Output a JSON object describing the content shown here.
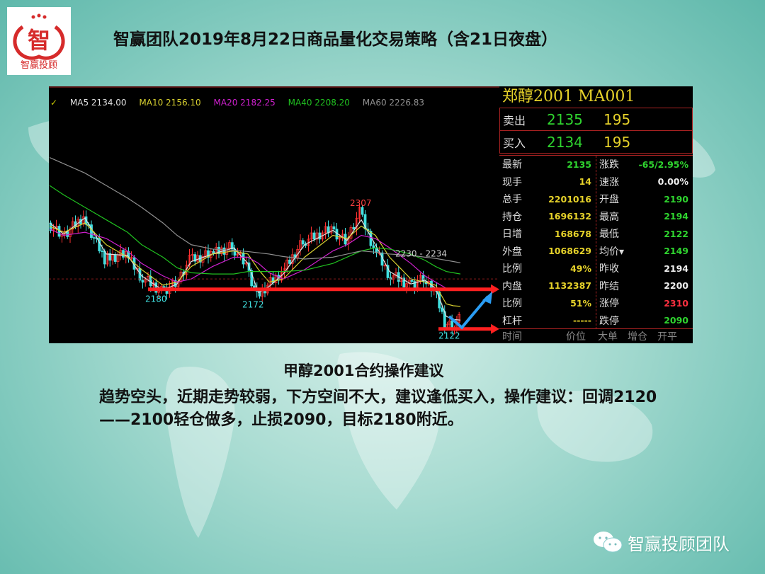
{
  "title": "智赢团队2019年8月22日商品量化交易策略（含21日夜盘）",
  "logo": {
    "text": "智赢投顾",
    "glyph": "智",
    "color": "#d62b2b"
  },
  "chart_data": {
    "type": "candlestick",
    "note_ma_legend": [
      {
        "name": "MA5",
        "value": "2134.00",
        "color": "#e0e0e0"
      },
      {
        "name": "MA10",
        "value": "2156.10",
        "color": "#d8d030"
      },
      {
        "name": "MA20",
        "value": "2182.25",
        "color": "#d020d0"
      },
      {
        "name": "MA40",
        "value": "2208.20",
        "color": "#20c020"
      },
      {
        "name": "MA60",
        "value": "2226.83",
        "color": "#909090"
      }
    ],
    "close": [
      2290,
      2268,
      2300,
      2232,
      2240,
      2206,
      2180,
      2192,
      2230,
      2240,
      2252,
      2222,
      2172,
      2190,
      2210,
      2260,
      2280,
      2260,
      2307,
      2250,
      2210,
      2190,
      2200,
      2185,
      2130,
      2122,
      2135
    ],
    "ma": {
      "MA5": [
        2290,
        2272,
        2298,
        2240,
        2238,
        2205,
        2182,
        2192,
        2228,
        2240,
        2250,
        2225,
        2178,
        2188,
        2208,
        2255,
        2278,
        2262,
        2295,
        2255,
        2212,
        2192,
        2198,
        2185,
        2140,
        2135,
        2134
      ],
      "MA10": [
        2285,
        2275,
        2290,
        2255,
        2235,
        2215,
        2190,
        2195,
        2220,
        2240,
        2245,
        2240,
        2215,
        2195,
        2200,
        2235,
        2270,
        2265,
        2285,
        2270,
        2235,
        2200,
        2195,
        2190,
        2160,
        2157,
        2156
      ],
      "MA20": [
        2280,
        2270,
        2275,
        2265,
        2245,
        2225,
        2205,
        2195,
        2200,
        2220,
        2235,
        2235,
        2225,
        2210,
        2200,
        2215,
        2245,
        2255,
        2270,
        2265,
        2250,
        2225,
        2205,
        2195,
        2185,
        2183,
        2182
      ],
      "MA40": [
        2350,
        2335,
        2315,
        2295,
        2275,
        2255,
        2235,
        2218,
        2210,
        2208,
        2208,
        2212,
        2212,
        2212,
        2212,
        2214,
        2225,
        2235,
        2245,
        2250,
        2248,
        2240,
        2230,
        2220,
        2212,
        2210,
        2208
      ],
      "MA60": [
        2395,
        2385,
        2370,
        2350,
        2330,
        2315,
        2290,
        2270,
        2255,
        2248,
        2246,
        2244,
        2242,
        2240,
        2236,
        2232,
        2235,
        2240,
        2245,
        2243,
        2240,
        2238,
        2235,
        2233,
        2230,
        2228,
        2226
      ]
    },
    "annotations": {
      "high": "2307",
      "low1": "2180",
      "low2": "2172",
      "low3": "2122",
      "range": "2230 - 2234"
    },
    "support_levels": [
      2180,
      2122
    ],
    "prev_settle_line": 2200,
    "colors": {
      "up": "#ff3030",
      "down": "#40e0e0",
      "arrow": "#ff2020",
      "forecast": "#2a9df4"
    }
  },
  "panel": {
    "header": "郑醇2001  MA001",
    "sell": {
      "label": "卖出",
      "price": "2135",
      "vol": "195"
    },
    "buy": {
      "label": "买入",
      "price": "2134",
      "vol": "195"
    },
    "left": [
      {
        "k": "最新",
        "v": "2135",
        "c": "#2fd42f"
      },
      {
        "k": "现手",
        "v": "14",
        "c": "#e6d22a"
      },
      {
        "k": "总手",
        "v": "2201016",
        "c": "#e6d22a"
      },
      {
        "k": "持仓",
        "v": "1696132",
        "c": "#e6d22a"
      },
      {
        "k": "日增",
        "v": "168678",
        "c": "#e6d22a"
      },
      {
        "k": "外盘",
        "v": "1068629",
        "c": "#e6d22a"
      },
      {
        "k": "比例",
        "v": "49%",
        "c": "#e6d22a"
      },
      {
        "k": "内盘",
        "v": "1132387",
        "c": "#e6d22a"
      },
      {
        "k": "比例",
        "v": "51%",
        "c": "#e6d22a"
      },
      {
        "k": "杠杆",
        "v": "-----",
        "c": "#e6d22a"
      }
    ],
    "right": [
      {
        "k": "涨跌",
        "v": "-65/2.95%",
        "c": "#2fd42f"
      },
      {
        "k": "速涨",
        "v": "0.00%",
        "c": "#eeeeee"
      },
      {
        "k": "开盘",
        "v": "2190",
        "c": "#2fd42f"
      },
      {
        "k": "最高",
        "v": "2194",
        "c": "#2fd42f"
      },
      {
        "k": "最低",
        "v": "2122",
        "c": "#2fd42f"
      },
      {
        "k": "均价▾",
        "v": "2149",
        "c": "#2fd42f"
      },
      {
        "k": "昨收",
        "v": "2194",
        "c": "#eeeeee"
      },
      {
        "k": "昨结",
        "v": "2200",
        "c": "#eeeeee"
      },
      {
        "k": "涨停",
        "v": "2310",
        "c": "#ff3040"
      },
      {
        "k": "跌停",
        "v": "2090",
        "c": "#2fd42f"
      }
    ],
    "footer": [
      "时间",
      "价位",
      "大单",
      "增仓",
      "开平"
    ]
  },
  "subtitle": "甲醇2001合约操作建议",
  "advice": "趋势空头，近期走势较弱，下方空间不大，建议逢低买入，操作建议：回调2120——2100轻仓做多，止损2090，目标2180附近。",
  "watermark": "智赢投顾团队"
}
